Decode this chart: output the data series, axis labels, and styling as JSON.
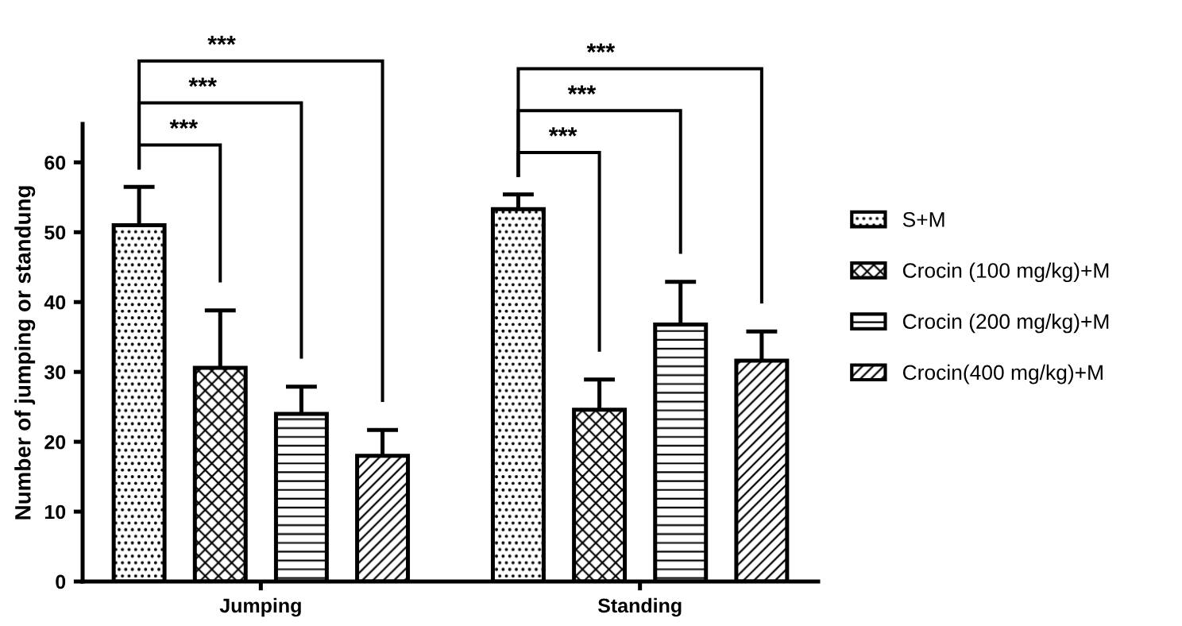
{
  "chart_data": {
    "type": "bar",
    "ylabel": "Number of jumping or standung",
    "categories": [
      "Jumping",
      "Standing"
    ],
    "series": [
      {
        "name": "S+M",
        "color": "#000000",
        "values": [
          51,
          53.3
        ],
        "errors": [
          5.5,
          2.1
        ]
      },
      {
        "name": "Crocin (100 mg/kg)+M",
        "color": "#000000",
        "values": [
          30.6,
          24.6
        ],
        "errors": [
          8.2,
          4.3
        ]
      },
      {
        "name": "Crocin (200 mg/kg)+M",
        "color": "#000000",
        "values": [
          24,
          36.8
        ],
        "errors": [
          3.9,
          6.1
        ]
      },
      {
        "name": "Crocin(400 mg/kg)+M",
        "color": "#000000",
        "values": [
          18,
          31.6
        ],
        "errors": [
          3.7,
          4.2
        ]
      }
    ],
    "ylim": [
      0,
      65.5
    ],
    "yticks": [
      0,
      10,
      20,
      30,
      40,
      50,
      60
    ],
    "annotations": [
      "***",
      "***",
      "***",
      "***",
      "***",
      "***"
    ],
    "grid": false,
    "legend": "right"
  }
}
